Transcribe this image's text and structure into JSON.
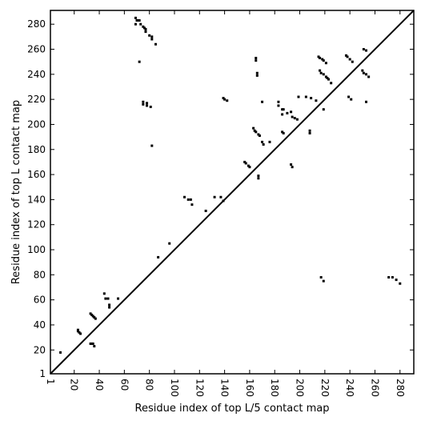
{
  "chart_data": {
    "type": "scatter",
    "x_label": "Residue index of top L/5 contact map",
    "y_label": "Residue index of top L contact map",
    "xlim": [
      1,
      291
    ],
    "ylim": [
      1,
      291
    ],
    "xticks": [
      1,
      20,
      40,
      60,
      80,
      100,
      120,
      140,
      160,
      180,
      200,
      220,
      240,
      260,
      280
    ],
    "yticks": [
      1,
      20,
      40,
      60,
      80,
      100,
      120,
      140,
      160,
      180,
      200,
      220,
      240,
      260,
      280
    ],
    "color": "#000000",
    "x": [
      9,
      23,
      24,
      25,
      23,
      33,
      34,
      35,
      36,
      33,
      34,
      35,
      36,
      37,
      44,
      45,
      47,
      48,
      48,
      55,
      69,
      70,
      71,
      72,
      69,
      73,
      75,
      76,
      77,
      77,
      80,
      82,
      82,
      85,
      72,
      75,
      75,
      78,
      78,
      81,
      82,
      87,
      96,
      108,
      111,
      113,
      114,
      125,
      132,
      137,
      139,
      139,
      140,
      142,
      156,
      157,
      159,
      160,
      163,
      164,
      165,
      167,
      168,
      167,
      167,
      165,
      165,
      166,
      166,
      170,
      170,
      171,
      176,
      183,
      183,
      186,
      187,
      186,
      187,
      186,
      190,
      193,
      194,
      196,
      198,
      193,
      194,
      199,
      208,
      208,
      205,
      209,
      213,
      215,
      216,
      218,
      219,
      221,
      216,
      217,
      219,
      221,
      222,
      223,
      225,
      217,
      219,
      219,
      237,
      238,
      240,
      242,
      239,
      241,
      250,
      251,
      253,
      255,
      251,
      253,
      253,
      271,
      274,
      277,
      280
    ],
    "y": [
      18,
      35,
      34,
      33,
      36,
      25,
      25,
      25,
      23,
      49,
      48,
      47,
      46,
      45,
      65,
      61,
      61,
      56,
      54,
      61,
      285,
      283,
      283,
      283,
      280,
      280,
      278,
      277,
      276,
      274,
      271,
      270,
      268,
      264,
      250,
      218,
      216,
      217,
      215,
      214,
      183,
      94,
      105,
      142,
      140,
      140,
      136,
      131,
      142,
      142,
      139,
      221,
      220,
      219,
      170,
      169,
      167,
      166,
      197,
      195,
      194,
      192,
      191,
      159,
      157,
      253,
      251,
      241,
      239,
      218,
      186,
      184,
      186,
      218,
      215,
      212,
      212,
      194,
      193,
      208,
      209,
      210,
      206,
      205,
      204,
      168,
      166,
      222,
      195,
      193,
      222,
      221,
      219,
      254,
      253,
      252,
      251,
      249,
      243,
      241,
      240,
      238,
      237,
      236,
      233,
      78,
      75,
      212,
      255,
      254,
      252,
      250,
      222,
      220,
      243,
      241,
      240,
      238,
      260,
      259,
      218,
      78,
      78,
      76,
      73
    ]
  }
}
